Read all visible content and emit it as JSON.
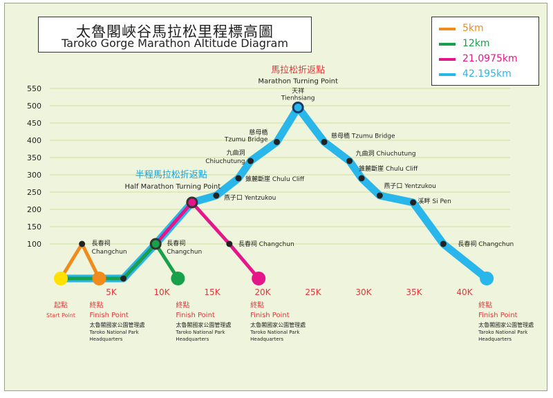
{
  "title": {
    "zh": "太魯閣峽谷馬拉松里程標高圖",
    "en": "Taroko Gorge Marathon Altitude Diagram"
  },
  "colors": {
    "background": "#eff5dc",
    "grid": "#cfe09a",
    "marker": "#222222",
    "red_text": "#e8333a",
    "blue_text": "#1aa0d8"
  },
  "chart_data": {
    "type": "line",
    "title": "Taroko Gorge Marathon Altitude Diagram",
    "xlabel": "",
    "ylabel": "",
    "xlim": [
      0,
      43
    ],
    "ylim": [
      0,
      550
    ],
    "x_ticks": [
      {
        "value": 5,
        "label": "5K"
      },
      {
        "value": 10,
        "label": "10K"
      },
      {
        "value": 15,
        "label": "15K"
      },
      {
        "value": 20,
        "label": "20K"
      },
      {
        "value": 25,
        "label": "25K"
      },
      {
        "value": 30,
        "label": "30K"
      },
      {
        "value": 35,
        "label": "35K"
      },
      {
        "value": 40,
        "label": "40K"
      }
    ],
    "y_ticks": [
      100,
      150,
      200,
      250,
      300,
      350,
      400,
      450,
      500,
      550
    ],
    "grid": true,
    "legend_position": "top-right",
    "series": [
      {
        "name": "42.195km",
        "color": "#29b6ea",
        "width": 11,
        "x": [
          0,
          6.2,
          9.4,
          13,
          15.4,
          17.6,
          18.8,
          21.4,
          23.5,
          26.1,
          28.6,
          29.8,
          31.6,
          34.9,
          37.9,
          42.2
        ],
        "y": [
          0,
          0,
          100,
          220,
          240,
          290,
          340,
          395,
          495,
          395,
          340,
          290,
          240,
          220,
          100,
          0
        ]
      },
      {
        "name": "21.0975km",
        "color": "#e5168a",
        "width": 5,
        "x": [
          0,
          6.2,
          9.4,
          13,
          16.7,
          19.6
        ],
        "y": [
          0,
          0,
          100,
          220,
          100,
          0
        ]
      },
      {
        "name": "12km",
        "color": "#19a04a",
        "width": 5,
        "x": [
          0,
          6.2,
          9.4,
          11.6
        ],
        "y": [
          0,
          0,
          100,
          0
        ]
      },
      {
        "name": "5km",
        "color": "#f08c1e",
        "width": 5,
        "x": [
          0,
          2.1,
          3.8
        ],
        "y": [
          0,
          100,
          0
        ]
      }
    ],
    "markers": [
      {
        "x": 6.2,
        "y": 0
      },
      {
        "x": 9.4,
        "y": 100
      },
      {
        "x": 15.4,
        "y": 240
      },
      {
        "x": 17.6,
        "y": 290
      },
      {
        "x": 18.8,
        "y": 340
      },
      {
        "x": 21.4,
        "y": 395
      },
      {
        "x": 26.1,
        "y": 395
      },
      {
        "x": 28.6,
        "y": 340
      },
      {
        "x": 29.8,
        "y": 290
      },
      {
        "x": 31.6,
        "y": 240
      },
      {
        "x": 34.9,
        "y": 220
      },
      {
        "x": 37.9,
        "y": 100
      },
      {
        "x": 16.7,
        "y": 100
      },
      {
        "x": 2.1,
        "y": 100
      }
    ],
    "end_dots": [
      {
        "name": "start",
        "x": 0,
        "y": 0,
        "color": "#ffe000"
      },
      {
        "name": "5km-finish",
        "x": 3.8,
        "y": 0,
        "color": "#f08c1e"
      },
      {
        "name": "12km-finish",
        "x": 11.6,
        "y": 0,
        "color": "#19a04a"
      },
      {
        "name": "half-finish",
        "x": 19.6,
        "y": 0,
        "color": "#e5168a"
      },
      {
        "name": "full-finish",
        "x": 42.2,
        "y": 0,
        "color": "#29b6ea"
      }
    ],
    "turning_rings": [
      {
        "name": "half-turn",
        "x": 13,
        "y": 220,
        "stroke": "#333333",
        "fill": "#e5168a"
      },
      {
        "name": "marathon-turn",
        "x": 23.5,
        "y": 495,
        "stroke": "#1a3a6a",
        "fill": "#29b6ea"
      },
      {
        "name": "12km-turn",
        "x": 9.4,
        "y": 100,
        "stroke": "#333333",
        "fill": "#19a04a"
      }
    ],
    "annotations": [
      {
        "name": "marathon-turn-zh",
        "text": "馬拉松折返點",
        "x": 23.5,
        "y": 495,
        "dx": 0,
        "dy": -50,
        "anchor": "middle",
        "size": 13,
        "color": "#e8333a"
      },
      {
        "name": "marathon-turn-en",
        "text": "Marathon Turning Point",
        "x": 23.5,
        "y": 495,
        "dx": 0,
        "dy": -35,
        "anchor": "middle",
        "size": 10,
        "color": "#222222"
      },
      {
        "name": "tienhsiang-zh",
        "text": "天祥",
        "x": 23.5,
        "y": 495,
        "dx": 0,
        "dy": -21,
        "anchor": "middle",
        "size": 9,
        "color": "#222222"
      },
      {
        "name": "tienhsiang-en",
        "text": "Tienhsiang",
        "x": 23.5,
        "y": 495,
        "dx": 0,
        "dy": -11,
        "anchor": "middle",
        "size": 9,
        "color": "#222222"
      },
      {
        "name": "half-turn-zh",
        "text": "半程馬拉松折返點",
        "x": 13,
        "y": 220,
        "dx": -30,
        "dy": -36,
        "anchor": "middle",
        "size": 13,
        "color": "#1aa0d8"
      },
      {
        "name": "half-turn-en",
        "text": "Half Marathon Turning Point",
        "x": 13,
        "y": 220,
        "dx": -28,
        "dy": -20,
        "anchor": "middle",
        "size": 10,
        "color": "#222222"
      },
      {
        "name": "changchun-5k-zh",
        "text": "長春祠",
        "x": 2.1,
        "y": 100,
        "dx": 14,
        "dy": 2,
        "anchor": "start",
        "size": 9,
        "color": "#222222"
      },
      {
        "name": "changchun-5k-en",
        "text": "Changchun",
        "x": 2.1,
        "y": 100,
        "dx": 14,
        "dy": 14,
        "anchor": "start",
        "size": 9,
        "color": "#222222"
      },
      {
        "name": "changchun-12k-zh",
        "text": "長春祠",
        "x": 9.4,
        "y": 100,
        "dx": 16,
        "dy": 2,
        "anchor": "start",
        "size": 9,
        "color": "#222222"
      },
      {
        "name": "changchun-12k-en",
        "text": "Changchun",
        "x": 9.4,
        "y": 100,
        "dx": 16,
        "dy": 14,
        "anchor": "start",
        "size": 9,
        "color": "#222222"
      },
      {
        "name": "changchun-half",
        "text": "長春祠  Changchun",
        "x": 16.7,
        "y": 100,
        "dx": 13,
        "dy": 3,
        "anchor": "start",
        "size": 9,
        "color": "#222222"
      },
      {
        "name": "yentzukou-up",
        "text": "燕子口  Yentzukou",
        "x": 15.4,
        "y": 240,
        "dx": 11,
        "dy": 6,
        "anchor": "start",
        "size": 9,
        "color": "#222222"
      },
      {
        "name": "chulu-up",
        "text": "錐麓斷崖  Chulu Cliff",
        "x": 17.6,
        "y": 290,
        "dx": 10,
        "dy": 4,
        "anchor": "start",
        "size": 9,
        "color": "#222222"
      },
      {
        "name": "chiuchutung-up-zh",
        "text": "九曲洞",
        "x": 18.8,
        "y": 340,
        "dx": -8,
        "dy": -9,
        "anchor": "end",
        "size": 9,
        "color": "#222222"
      },
      {
        "name": "chiuchutung-up-en",
        "text": "Chiuchutung",
        "x": 18.8,
        "y": 340,
        "dx": -8,
        "dy": 3,
        "anchor": "end",
        "size": 9,
        "color": "#222222"
      },
      {
        "name": "tzumu-up-zh",
        "text": "慈母橋",
        "x": 21.4,
        "y": 395,
        "dx": -13,
        "dy": -11,
        "anchor": "end",
        "size": 9,
        "color": "#222222"
      },
      {
        "name": "tzumu-up-en",
        "text": "Tzumu Bridge",
        "x": 21.4,
        "y": 395,
        "dx": -13,
        "dy": -1,
        "anchor": "end",
        "size": 9,
        "color": "#222222"
      },
      {
        "name": "tzumu-down",
        "text": "慈母橋  Tzumu Bridge",
        "x": 26.1,
        "y": 395,
        "dx": 10,
        "dy": -6,
        "anchor": "start",
        "size": 9,
        "color": "#222222"
      },
      {
        "name": "chiuchutung-down",
        "text": "九曲洞  Chiuchutung",
        "x": 28.6,
        "y": 340,
        "dx": 9,
        "dy": -8,
        "anchor": "start",
        "size": 9,
        "color": "#222222"
      },
      {
        "name": "chulu-down",
        "text": "錐麓斷崖  Chulu Cliff",
        "x": 29.8,
        "y": 290,
        "dx": -4,
        "dy": -11,
        "anchor": "start",
        "size": 9,
        "color": "#222222"
      },
      {
        "name": "yentzukou-down",
        "text": "燕子口  Yentzukou",
        "x": 31.6,
        "y": 240,
        "dx": 6,
        "dy": -11,
        "anchor": "start",
        "size": 9,
        "color": "#222222"
      },
      {
        "name": "sipen",
        "text": "溪畔  Si Pen",
        "x": 34.9,
        "y": 220,
        "dx": 7,
        "dy": 1,
        "anchor": "start",
        "size": 9,
        "color": "#222222"
      },
      {
        "name": "changchun-full",
        "text": "長春祠  Changchun",
        "x": 37.9,
        "y": 100,
        "dx": 21,
        "dy": 3,
        "anchor": "start",
        "size": 9,
        "color": "#222222"
      }
    ],
    "bottom_labels": [
      {
        "name": "start",
        "x": 0,
        "lines": [
          {
            "text": "起點",
            "color": "#e8333a",
            "size": 10
          },
          {
            "text": "Start Point",
            "color": "#e8333a",
            "size": 8
          }
        ],
        "dx": 0,
        "anchor": "middle"
      },
      {
        "name": "finish-5k",
        "x": 3.8,
        "lines": [
          {
            "text": "終點",
            "color": "#e8333a",
            "size": 10
          },
          {
            "text": "Finish Point",
            "color": "#e8333a",
            "size": 10
          },
          {
            "text": "太魯閣國家公園管理處",
            "color": "#222222",
            "size": 8
          },
          {
            "text": "Taroko National Park",
            "color": "#222222",
            "size": 7
          },
          {
            "text": "Headquarters",
            "color": "#222222",
            "size": 7
          }
        ],
        "dx": -14,
        "anchor": "start"
      },
      {
        "name": "finish-12k",
        "x": 11.6,
        "lines": [
          {
            "text": "終點",
            "color": "#e8333a",
            "size": 10
          },
          {
            "text": "Finish Point",
            "color": "#e8333a",
            "size": 10
          },
          {
            "text": "太魯閣國家公園管理處",
            "color": "#222222",
            "size": 8
          },
          {
            "text": "Taroko National Park",
            "color": "#222222",
            "size": 7
          },
          {
            "text": "Headquarters",
            "color": "#222222",
            "size": 7
          }
        ],
        "dx": -3,
        "anchor": "start"
      },
      {
        "name": "finish-half",
        "x": 19.6,
        "lines": [
          {
            "text": "終點",
            "color": "#e8333a",
            "size": 10
          },
          {
            "text": "Finish Point",
            "color": "#e8333a",
            "size": 10
          },
          {
            "text": "太魯閣國家公園管理處",
            "color": "#222222",
            "size": 8
          },
          {
            "text": "Taroko National Park",
            "color": "#222222",
            "size": 7
          },
          {
            "text": "Headquarters",
            "color": "#222222",
            "size": 7
          }
        ],
        "dx": -12,
        "anchor": "start"
      },
      {
        "name": "finish-full",
        "x": 42.2,
        "lines": [
          {
            "text": "終點",
            "color": "#e8333a",
            "size": 10
          },
          {
            "text": "Finish Point",
            "color": "#e8333a",
            "size": 10
          },
          {
            "text": "太魯閣國家公園管理處",
            "color": "#222222",
            "size": 8
          },
          {
            "text": "Taroko National Park",
            "color": "#222222",
            "size": 7
          },
          {
            "text": "Headquarters",
            "color": "#222222",
            "size": 7
          }
        ],
        "dx": -12,
        "anchor": "start"
      }
    ]
  }
}
